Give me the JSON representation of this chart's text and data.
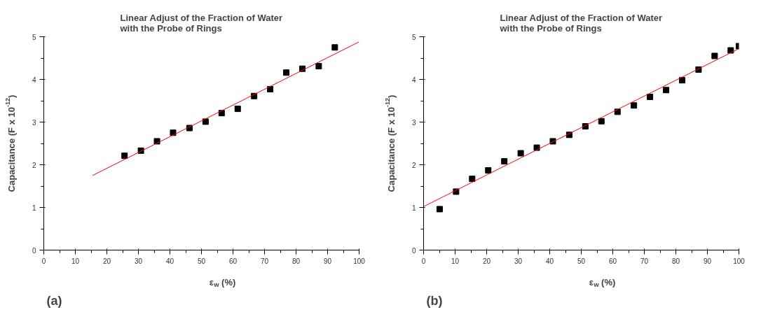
{
  "chart_data": [
    {
      "type": "scatter",
      "title": "Linear Adjust of the Fraction of Water with the Probe of Rings",
      "xlabel": "ε$_{w}$ (%)",
      "ylabel": "Capacitance (F x 10$^{-12}$)",
      "xlim": [
        0,
        100
      ],
      "ylim": [
        0,
        5
      ],
      "xticks": [
        0,
        10,
        20,
        30,
        40,
        50,
        60,
        70,
        80,
        90,
        100
      ],
      "yticks": [
        0,
        1,
        2,
        3,
        4,
        5
      ],
      "grid": false,
      "annotations": [
        "(a)"
      ],
      "series": [
        {
          "type": "scatter",
          "marker": "square",
          "color": "#000000",
          "x": [
            25.6,
            30.8,
            35.9,
            41,
            46.2,
            51.3,
            56.4,
            61.5,
            66.7,
            71.8,
            76.9,
            82,
            87.2,
            92.3
          ],
          "values": [
            2.21,
            2.33,
            2.55,
            2.75,
            2.86,
            3.01,
            3.21,
            3.31,
            3.61,
            3.77,
            4.16,
            4.25,
            4.31,
            4.75
          ]
        },
        {
          "type": "line",
          "color": "#ff0000",
          "x": [
            15.5,
            100
          ],
          "values": [
            1.75,
            4.88
          ]
        }
      ]
    },
    {
      "type": "scatter",
      "title": "Linear Adjust of the Fraction of Water with the Probe of Rings",
      "xlabel": "ε$_{w}$ (%)",
      "ylabel": "Capacitance (F x 10$^{-12}$)",
      "xlim": [
        0,
        100
      ],
      "ylim": [
        0,
        5
      ],
      "xticks": [
        0,
        10,
        20,
        30,
        40,
        50,
        60,
        70,
        80,
        90,
        100
      ],
      "yticks": [
        0,
        1,
        2,
        3,
        4,
        5
      ],
      "grid": false,
      "annotations": [
        "(b)"
      ],
      "series": [
        {
          "type": "scatter",
          "marker": "square",
          "color": "#000000",
          "x": [
            5.1,
            10.3,
            15.4,
            20.5,
            25.6,
            30.8,
            35.9,
            41,
            46.2,
            51.3,
            56.4,
            61.5,
            66.7,
            71.8,
            76.9,
            82,
            87.2,
            92.3,
            97.4,
            100
          ],
          "values": [
            0.96,
            1.37,
            1.67,
            1.87,
            2.08,
            2.27,
            2.4,
            2.55,
            2.7,
            2.9,
            3.02,
            3.24,
            3.39,
            3.59,
            3.75,
            3.98,
            4.23,
            4.55,
            4.68,
            4.78
          ]
        },
        {
          "type": "line",
          "color": "#ff0000",
          "x": [
            0,
            100
          ],
          "values": [
            1.02,
            4.72
          ]
        }
      ]
    }
  ]
}
